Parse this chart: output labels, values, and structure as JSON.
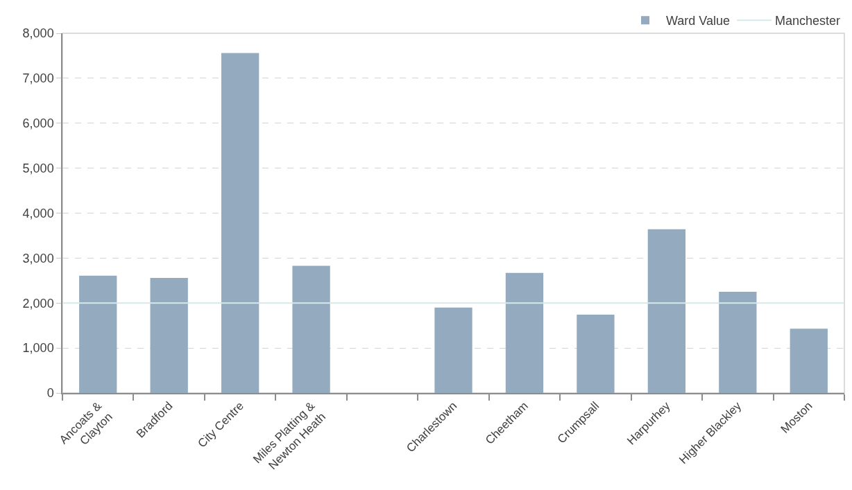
{
  "chart_data": {
    "type": "bar",
    "categories": [
      "Ancoats & Clayton",
      "Bradford",
      "City Centre",
      "Miles Platting & Newton Heath",
      null,
      "Charlestown",
      "Cheetham",
      "Crumpsall",
      "Harpurhey",
      "Higher Blackley",
      "Moston"
    ],
    "series": [
      {
        "name": "Ward Value",
        "color": "#94abbf",
        "values": [
          2610,
          2560,
          7560,
          2830,
          null,
          1900,
          2670,
          1740,
          3640,
          2250,
          1430
        ]
      }
    ],
    "ref_lines": [
      {
        "axis": "y",
        "value": 2000,
        "label": "Manchester",
        "color": "#d7e8e9",
        "line_style": "solid"
      }
    ],
    "ylim": [
      0,
      8000
    ],
    "yticks": [
      0,
      {
        "value": 1000,
        "label": "1,000"
      },
      {
        "value": 2000,
        "label": "2,000"
      },
      {
        "value": 3000,
        "label": "3,000"
      },
      {
        "value": 4000,
        "label": "4,000"
      },
      {
        "value": 5000,
        "label": "5,000"
      },
      {
        "value": 6000,
        "label": "6,000"
      },
      {
        "value": 7000,
        "label": "7,000"
      },
      {
        "value": 8000,
        "label": "8,000"
      }
    ],
    "grid": "y",
    "legend": "top right"
  }
}
